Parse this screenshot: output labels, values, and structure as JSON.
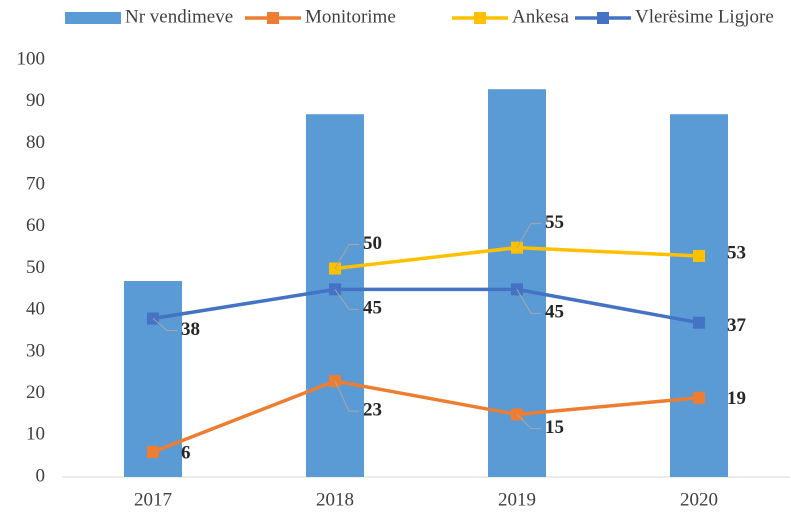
{
  "chart_data": {
    "type": "bar",
    "categories": [
      "2017",
      "2018",
      "2019",
      "2020"
    ],
    "series": [
      {
        "name": "Nr vendimeve",
        "type": "bar",
        "color": "#5b9bd5",
        "values": [
          47,
          87,
          93,
          87
        ]
      },
      {
        "name": "Monitorime",
        "type": "line",
        "color": "#ed7d31",
        "values": [
          6,
          23,
          15,
          19
        ]
      },
      {
        "name": "Ankesa",
        "type": "line",
        "color": "#ffc000",
        "values": [
          null,
          50,
          55,
          53
        ]
      },
      {
        "name": "Vlerësime Ligjore",
        "type": "line",
        "color": "#4472c4",
        "values": [
          38,
          45,
          45,
          37
        ]
      }
    ],
    "ylim": [
      0,
      100
    ],
    "yticks": [
      0,
      10,
      20,
      30,
      40,
      50,
      60,
      70,
      80,
      90,
      100
    ],
    "grid": false,
    "legend": "top"
  }
}
